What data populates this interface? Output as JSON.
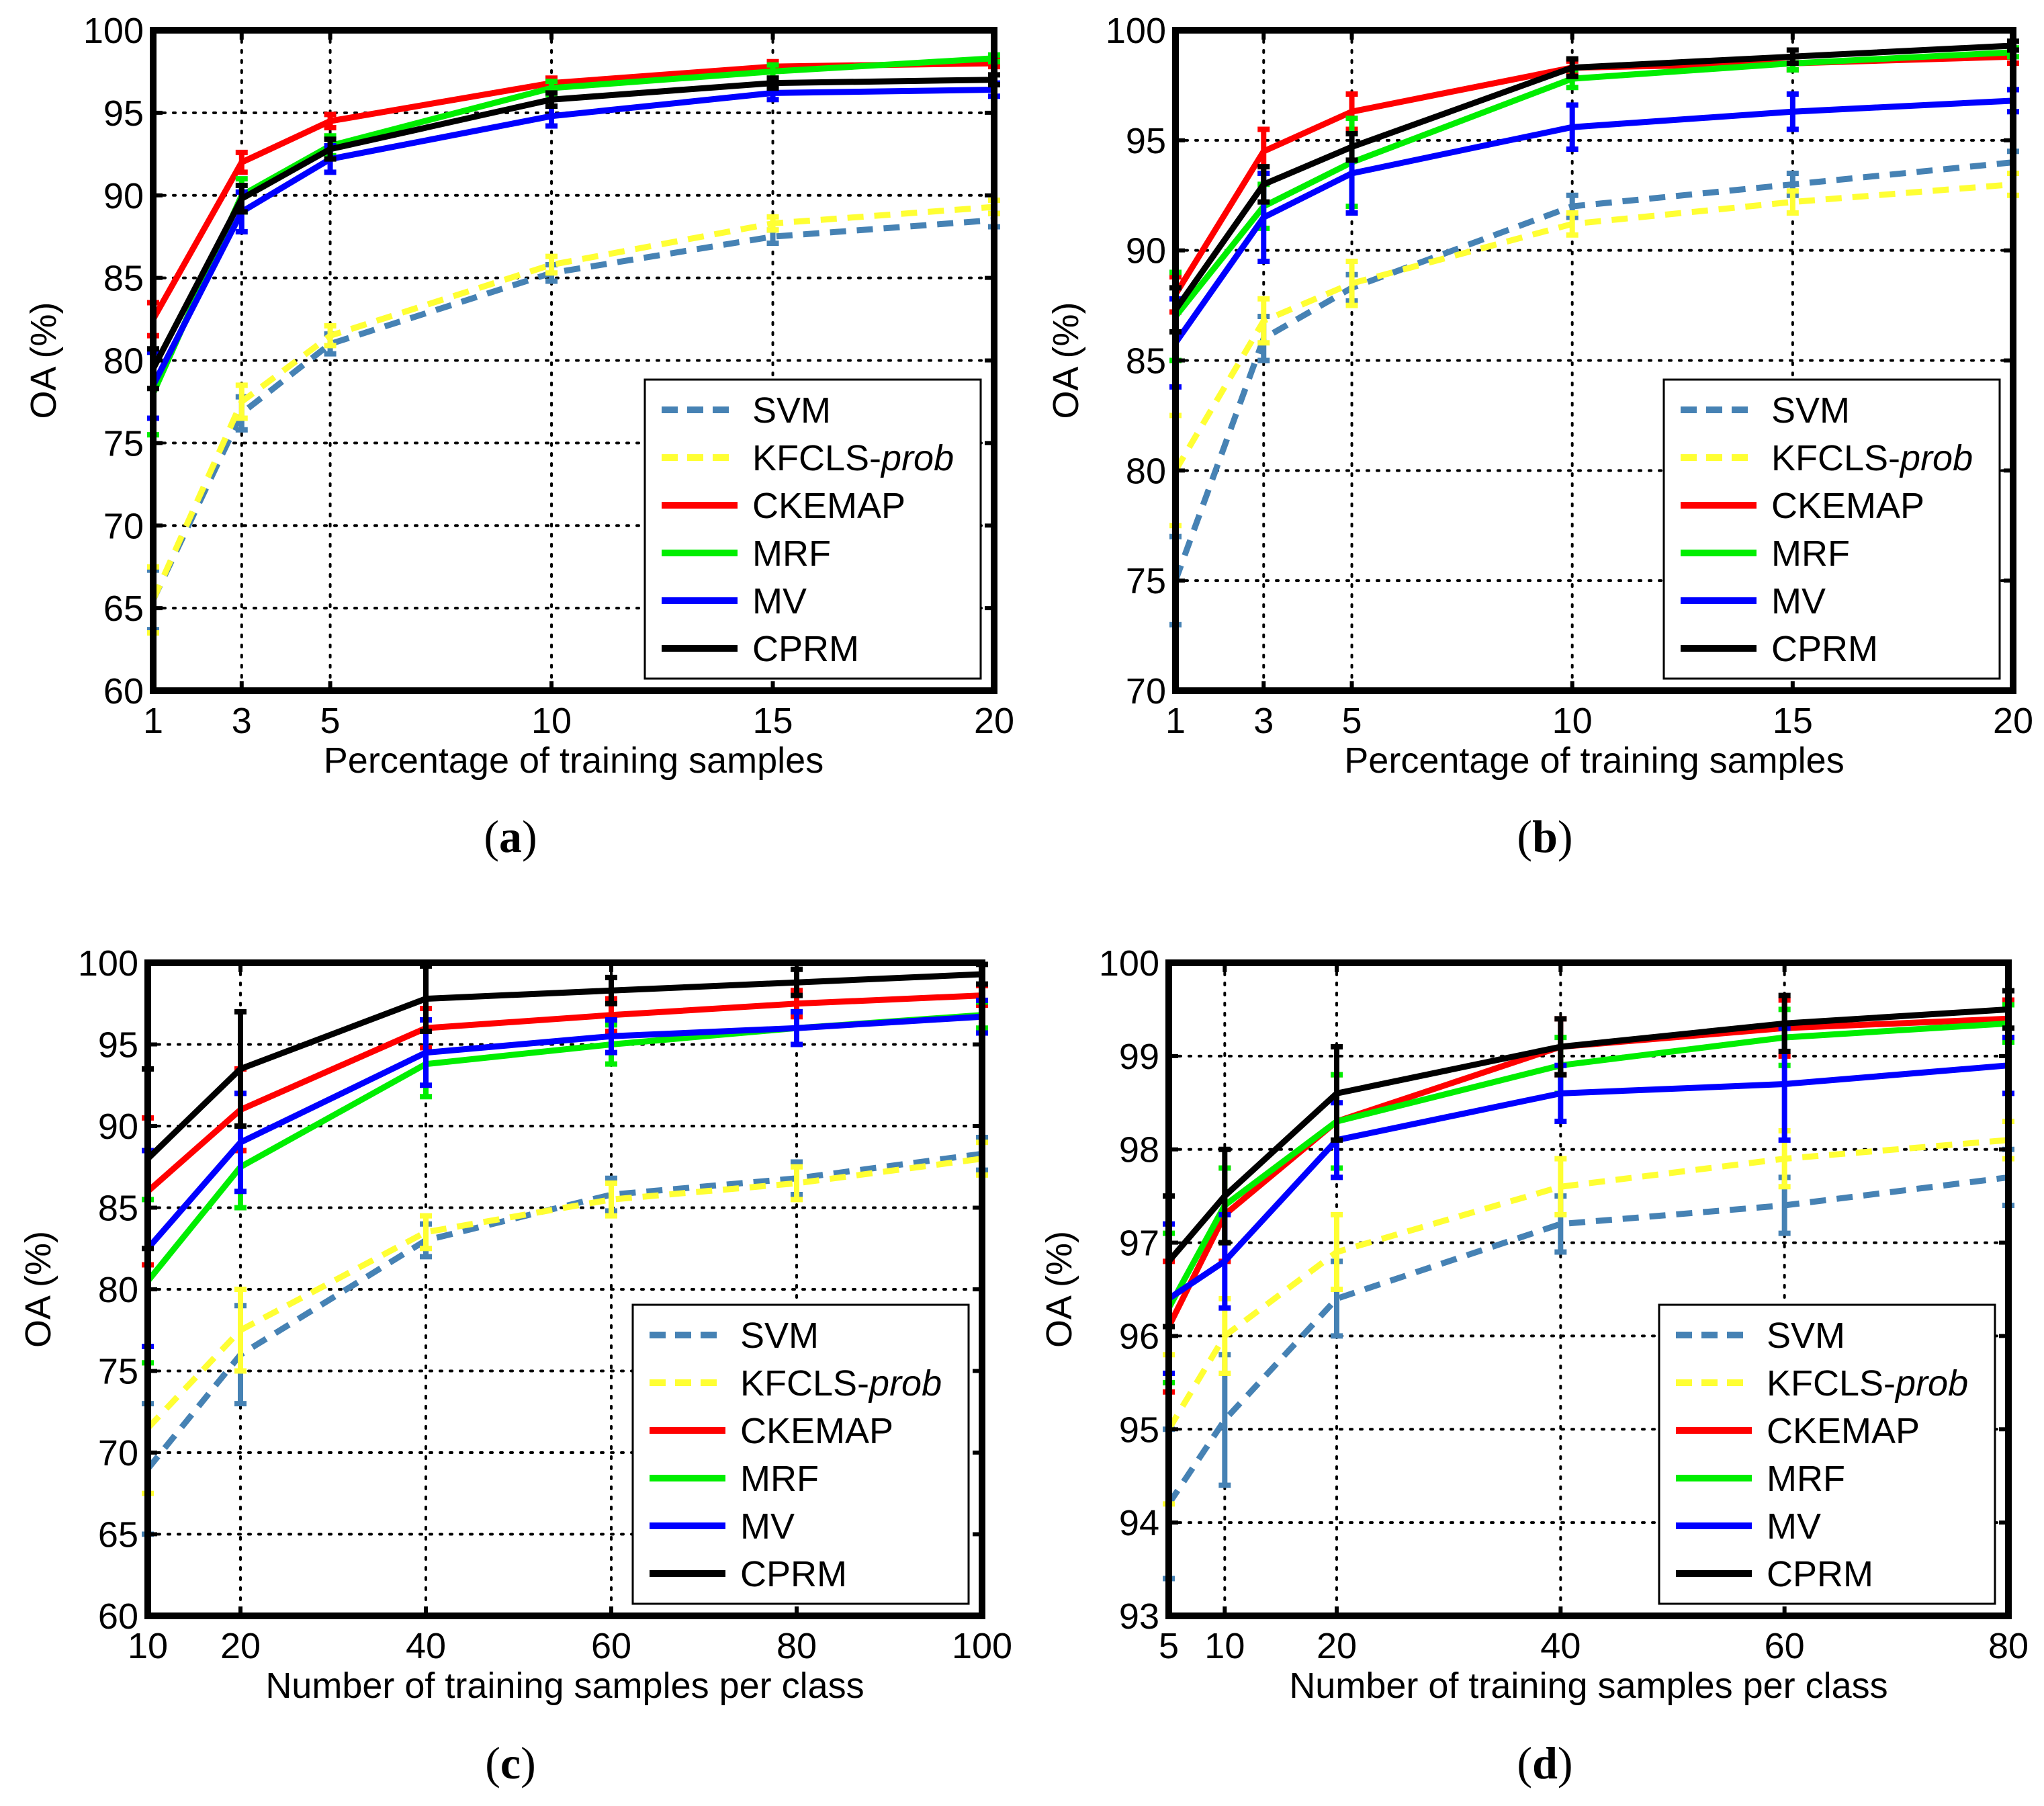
{
  "figure": {
    "captions": [
      "(a)",
      "(b)",
      "(c)",
      "(d)"
    ]
  },
  "series_styles": [
    {
      "name": "SVM",
      "color": "#4682B4",
      "dashed": true
    },
    {
      "name": "KFCLS-prob",
      "color": "#FFFF33",
      "dashed": true
    },
    {
      "name": "CKEMAP",
      "color": "#FF0000",
      "dashed": false
    },
    {
      "name": "MRF",
      "color": "#00EE00",
      "dashed": false
    },
    {
      "name": "MV",
      "color": "#0000FF",
      "dashed": false
    },
    {
      "name": "CPRM",
      "color": "#000000",
      "dashed": false
    }
  ],
  "chart_data": [
    {
      "type": "line",
      "caption": "(a)",
      "xlabel": "Percentage of training samples",
      "ylabel": "OA (%)",
      "x": [
        1,
        3,
        5,
        10,
        15,
        20
      ],
      "xlim": [
        1,
        20
      ],
      "ylim": [
        60,
        100
      ],
      "xticks": [
        "1",
        "3",
        "5",
        "10",
        "15",
        "20"
      ],
      "yticks": [
        "60",
        "65",
        "70",
        "75",
        "80",
        "85",
        "90",
        "95",
        "100"
      ],
      "grid": true,
      "legend": {
        "position": "bottom-right",
        "entries": [
          {
            "prefix": "SVM",
            "italic": ""
          },
          {
            "prefix": "KFCLS-",
            "italic": "prob"
          },
          {
            "prefix": "CKEMAP",
            "italic": ""
          },
          {
            "prefix": "MRF",
            "italic": ""
          },
          {
            "prefix": "MV",
            "italic": ""
          },
          {
            "prefix": "CPRM",
            "italic": ""
          }
        ]
      },
      "series": [
        {
          "name": "SVM",
          "values": [
            65.5,
            76.8,
            81.0,
            85.3,
            87.5,
            88.5
          ],
          "errors": [
            1.8,
            1.0,
            0.6,
            0.5,
            0.4,
            0.4
          ]
        },
        {
          "name": "KFCLS-prob",
          "values": [
            65.5,
            77.5,
            81.5,
            85.8,
            88.3,
            89.3
          ],
          "errors": [
            2.0,
            1.0,
            0.6,
            0.5,
            0.4,
            0.4
          ]
        },
        {
          "name": "CKEMAP",
          "values": [
            82.5,
            92.0,
            94.5,
            96.8,
            97.8,
            98.0
          ],
          "errors": [
            1.0,
            0.6,
            0.4,
            0.3,
            0.3,
            0.2
          ]
        },
        {
          "name": "MRF",
          "values": [
            78.0,
            90.0,
            93.0,
            96.5,
            97.5,
            98.3
          ],
          "errors": [
            2.5,
            1.0,
            0.6,
            0.4,
            0.4,
            0.2
          ]
        },
        {
          "name": "MV",
          "values": [
            78.5,
            89.0,
            92.2,
            94.8,
            96.2,
            96.4
          ],
          "errors": [
            2.0,
            1.2,
            0.8,
            0.6,
            0.4,
            0.4
          ]
        },
        {
          "name": "CPRM",
          "values": [
            79.5,
            89.8,
            92.8,
            95.8,
            96.8,
            97.0
          ],
          "errors": [
            1.2,
            0.8,
            0.6,
            0.4,
            0.3,
            0.3
          ]
        }
      ]
    },
    {
      "type": "line",
      "caption": "(b)",
      "xlabel": "Percentage of training samples",
      "ylabel": "OA (%)",
      "x": [
        1,
        3,
        5,
        10,
        15,
        20
      ],
      "xlim": [
        1,
        20
      ],
      "ylim": [
        70,
        100
      ],
      "xticks": [
        "1",
        "3",
        "5",
        "10",
        "15",
        "20"
      ],
      "yticks": [
        "70",
        "75",
        "80",
        "85",
        "90",
        "95",
        "100"
      ],
      "grid": true,
      "legend": {
        "position": "bottom-right",
        "entries": [
          {
            "prefix": "SVM",
            "italic": ""
          },
          {
            "prefix": "KFCLS-",
            "italic": "prob"
          },
          {
            "prefix": "CKEMAP",
            "italic": ""
          },
          {
            "prefix": "MRF",
            "italic": ""
          },
          {
            "prefix": "MV",
            "italic": ""
          },
          {
            "prefix": "CPRM",
            "italic": ""
          }
        ]
      },
      "series": [
        {
          "name": "SVM",
          "values": [
            75.0,
            86.0,
            88.3,
            92.0,
            93.0,
            94.0
          ],
          "errors": [
            2.0,
            1.0,
            0.6,
            0.5,
            0.5,
            0.5
          ]
        },
        {
          "name": "KFCLS-prob",
          "values": [
            80.0,
            86.8,
            88.5,
            91.2,
            92.2,
            93.0
          ],
          "errors": [
            2.5,
            1.0,
            1.0,
            0.5,
            0.5,
            0.5
          ]
        },
        {
          "name": "CKEMAP",
          "values": [
            88.0,
            94.5,
            96.3,
            98.3,
            98.5,
            98.8
          ],
          "errors": [
            0.8,
            1.0,
            0.8,
            0.3,
            0.3,
            0.3
          ]
        },
        {
          "name": "MRF",
          "values": [
            87.0,
            92.0,
            94.0,
            97.8,
            98.5,
            99.0
          ],
          "errors": [
            2.0,
            1.0,
            2.0,
            0.4,
            0.3,
            0.2
          ]
        },
        {
          "name": "MV",
          "values": [
            85.8,
            91.5,
            93.5,
            95.6,
            96.3,
            96.8
          ],
          "errors": [
            2.0,
            2.0,
            1.8,
            1.0,
            0.8,
            0.5
          ]
        },
        {
          "name": "CPRM",
          "values": [
            87.3,
            93.0,
            94.7,
            98.3,
            98.8,
            99.3
          ],
          "errors": [
            1.0,
            0.8,
            0.6,
            0.4,
            0.3,
            0.2
          ]
        }
      ]
    },
    {
      "type": "line",
      "caption": "(c)",
      "xlabel": "Number of training samples per class",
      "ylabel": "OA (%)",
      "x": [
        10,
        20,
        40,
        60,
        80,
        100
      ],
      "xlim": [
        10,
        100
      ],
      "ylim": [
        60,
        100
      ],
      "xticks": [
        "10",
        "20",
        "40",
        "60",
        "80",
        "100"
      ],
      "yticks": [
        "60",
        "65",
        "70",
        "75",
        "80",
        "85",
        "90",
        "95",
        "100"
      ],
      "grid": true,
      "legend": {
        "position": "bottom-right",
        "entries": [
          {
            "prefix": "SVM",
            "italic": ""
          },
          {
            "prefix": "KFCLS-",
            "italic": "prob"
          },
          {
            "prefix": "CKEMAP",
            "italic": ""
          },
          {
            "prefix": "MRF",
            "italic": ""
          },
          {
            "prefix": "MV",
            "italic": ""
          },
          {
            "prefix": "CPRM",
            "italic": ""
          }
        ]
      },
      "series": [
        {
          "name": "SVM",
          "values": [
            69.0,
            76.0,
            83.0,
            85.8,
            86.8,
            88.3
          ],
          "errors": [
            4.0,
            3.0,
            1.0,
            1.0,
            1.0,
            1.0
          ]
        },
        {
          "name": "KFCLS-prob",
          "values": [
            71.5,
            77.5,
            83.5,
            85.5,
            86.5,
            88.0
          ],
          "errors": [
            4.0,
            2.5,
            1.0,
            1.0,
            1.0,
            1.0
          ]
        },
        {
          "name": "CKEMAP",
          "values": [
            86.0,
            91.0,
            96.0,
            96.8,
            97.5,
            98.0
          ],
          "errors": [
            4.5,
            2.5,
            1.2,
            1.0,
            0.8,
            0.6
          ]
        },
        {
          "name": "MRF",
          "values": [
            80.5,
            87.5,
            93.8,
            95.0,
            96.0,
            96.8
          ],
          "errors": [
            5.0,
            2.5,
            2.0,
            1.2,
            1.0,
            0.8
          ]
        },
        {
          "name": "MV",
          "values": [
            82.5,
            89.0,
            94.5,
            95.5,
            96.0,
            96.7
          ],
          "errors": [
            6.0,
            3.0,
            2.0,
            1.0,
            1.0,
            1.0
          ]
        },
        {
          "name": "CPRM",
          "values": [
            88.0,
            93.5,
            97.8,
            98.3,
            98.8,
            99.3
          ],
          "errors": [
            5.5,
            3.5,
            2.0,
            0.8,
            0.8,
            0.6
          ]
        }
      ]
    },
    {
      "type": "line",
      "caption": "(d)",
      "xlabel": "Number of training samples per class",
      "ylabel": "OA (%)",
      "x": [
        5,
        10,
        20,
        40,
        60,
        80
      ],
      "xlim": [
        5,
        80
      ],
      "ylim": [
        93,
        100
      ],
      "xticks": [
        "5",
        "10",
        "20",
        "40",
        "60",
        "80"
      ],
      "yticks": [
        "93",
        "94",
        "95",
        "96",
        "97",
        "98",
        "99",
        "100"
      ],
      "grid": true,
      "legend": {
        "position": "bottom-right",
        "entries": [
          {
            "prefix": "SVM",
            "italic": ""
          },
          {
            "prefix": "KFCLS-",
            "italic": "prob"
          },
          {
            "prefix": "CKEMAP",
            "italic": ""
          },
          {
            "prefix": "MRF",
            "italic": ""
          },
          {
            "prefix": "MV",
            "italic": ""
          },
          {
            "prefix": "CPRM",
            "italic": ""
          }
        ]
      },
      "series": [
        {
          "name": "SVM",
          "values": [
            94.2,
            95.1,
            96.4,
            97.2,
            97.4,
            97.7
          ],
          "errors": [
            0.8,
            0.7,
            0.4,
            0.3,
            0.3,
            0.3
          ]
        },
        {
          "name": "KFCLS-prob",
          "values": [
            95.0,
            96.0,
            96.9,
            97.6,
            97.9,
            98.1
          ],
          "errors": [
            0.8,
            0.4,
            0.4,
            0.3,
            0.3,
            0.2
          ]
        },
        {
          "name": "CKEMAP",
          "values": [
            96.1,
            97.3,
            98.3,
            99.1,
            99.3,
            99.4
          ],
          "errors": [
            0.7,
            0.5,
            0.5,
            0.3,
            0.3,
            0.2
          ]
        },
        {
          "name": "MRF",
          "values": [
            96.3,
            97.4,
            98.3,
            98.9,
            99.2,
            99.35
          ],
          "errors": [
            0.8,
            0.4,
            0.5,
            0.3,
            0.3,
            0.2
          ]
        },
        {
          "name": "MV",
          "values": [
            96.4,
            96.8,
            98.1,
            98.6,
            98.7,
            98.9
          ],
          "errors": [
            0.8,
            0.5,
            0.4,
            0.3,
            0.6,
            0.3
          ]
        },
        {
          "name": "CPRM",
          "values": [
            96.8,
            97.5,
            98.6,
            99.1,
            99.35,
            99.5
          ],
          "errors": [
            0.7,
            0.5,
            0.5,
            0.3,
            0.3,
            0.2
          ]
        }
      ]
    }
  ]
}
